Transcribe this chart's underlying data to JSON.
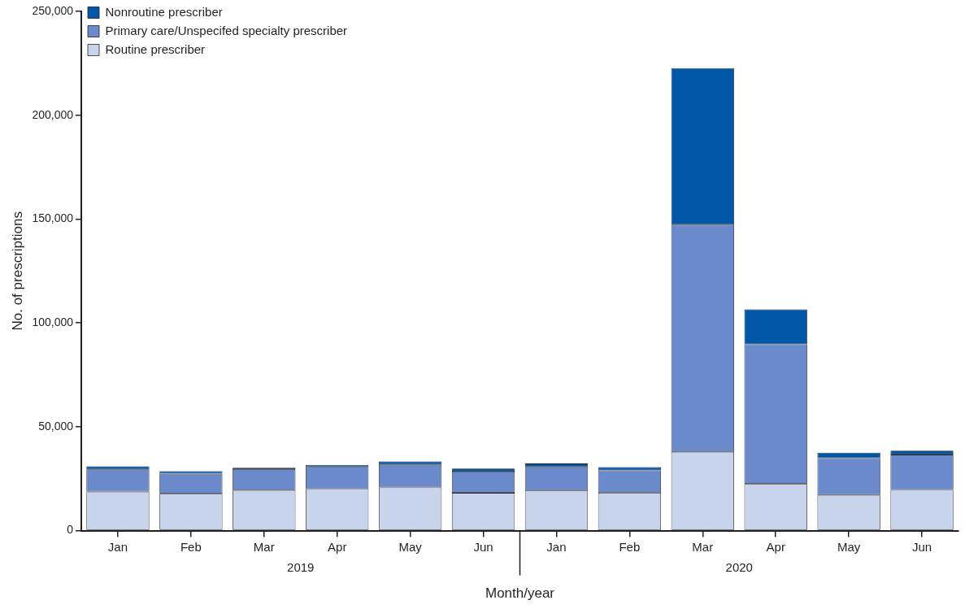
{
  "chart_data": {
    "type": "bar",
    "stacked": true,
    "xlabel": "Month/year",
    "ylabel": "No. of prescriptions",
    "categories": [
      "Jan",
      "Feb",
      "Mar",
      "Apr",
      "May",
      "Jun",
      "Jan",
      "Feb",
      "Mar",
      "Apr",
      "May",
      "Jun"
    ],
    "series": [
      {
        "name": "Routine prescriber",
        "color": "#c8d3ec",
        "values": [
          18800,
          17800,
          19500,
          20000,
          20800,
          18200,
          19300,
          18300,
          37900,
          22500,
          17200,
          19600
        ]
      },
      {
        "name": "Primary care/Unspecifed specialty prescriber",
        "color": "#6a8acb",
        "values": [
          10700,
          9600,
          10100,
          10700,
          10900,
          10200,
          11400,
          10700,
          109400,
          67200,
          17700,
          17000
        ]
      },
      {
        "name": "Nonroutine prescriber",
        "color": "#0057a8",
        "values": [
          1500,
          1200,
          700,
          1000,
          1600,
          1500,
          1600,
          1600,
          75400,
          16800,
          2600,
          1900
        ]
      }
    ],
    "ylim": [
      0,
      250000
    ],
    "yticks": [
      {
        "value": 0,
        "label": "0"
      },
      {
        "value": 50000,
        "label": "50,000"
      },
      {
        "value": 100000,
        "label": "100,000"
      },
      {
        "value": 150000,
        "label": "150,000"
      },
      {
        "value": 200000,
        "label": "200,000"
      },
      {
        "value": 250000,
        "label": "250,000"
      }
    ],
    "annotations": [
      "2019",
      "2020"
    ],
    "grid": false,
    "legend": "top left"
  }
}
